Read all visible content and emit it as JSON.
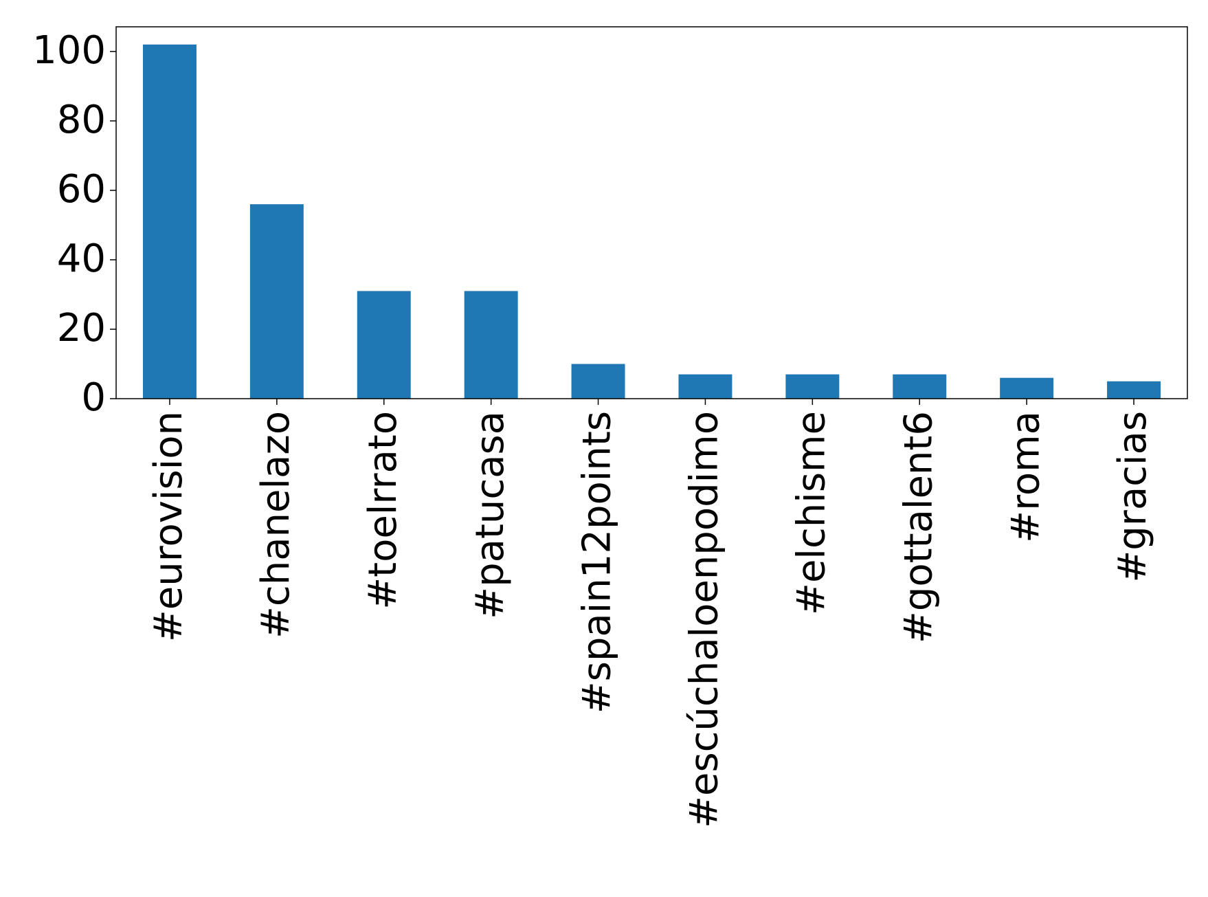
{
  "chart_data": {
    "type": "bar",
    "categories": [
      "#eurovision",
      "#chanelazo",
      "#toelrrato",
      "#patucasa",
      "#spain12points",
      "#escúchaloenpodimo",
      "#elchisme",
      "#gottalent6",
      "#roma",
      "#gracias"
    ],
    "values": [
      102,
      56,
      31,
      31,
      10,
      7,
      7,
      7,
      6,
      5
    ],
    "color": "#1f77b4",
    "ylim": [
      0,
      107.1
    ],
    "yticks": [
      0,
      20,
      40,
      60,
      80,
      100
    ],
    "grid": false
  }
}
